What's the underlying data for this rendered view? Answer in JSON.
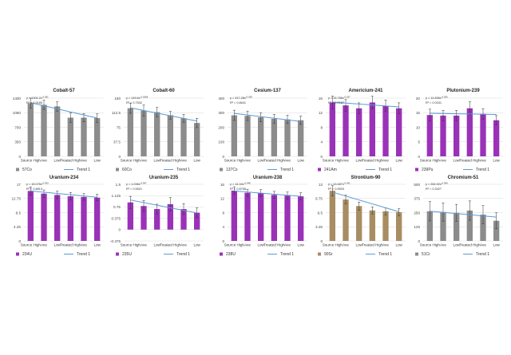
{
  "categories": [
    "Source High",
    "Ave",
    "Low",
    "Treated High",
    "Ave",
    "Low"
  ],
  "trend_label": "Trend 1",
  "colors": {
    "gray": "#8c8c8c",
    "purple": "#9a32b8",
    "tan": "#a88d63",
    "trend": "#5b9bd5",
    "error": "#333333"
  },
  "chart_data": [
    {
      "type": "bar",
      "title": "Cobalt-57",
      "series_name": "57Co",
      "color_key": "gray",
      "yticks": [
        "0",
        "350",
        "700",
        "1050",
        "1400"
      ],
      "ylim": [
        0,
        1400
      ],
      "eq_main": "y = 1304.2x",
      "eq_exp": "-0.061",
      "r2_text": "R² = 0.9185",
      "values": [
        1280,
        1240,
        1200,
        930,
        930,
        920
      ],
      "errors": [
        120,
        110,
        110,
        110,
        100,
        100
      ],
      "trend": [
        1290,
        920
      ]
    },
    {
      "type": "bar",
      "title": "Cobalt-60",
      "series_name": "60Co",
      "color_key": "gray",
      "yticks": [
        "0",
        "37.5",
        "75",
        "112.5",
        "150"
      ],
      "ylim": [
        0,
        150
      ],
      "eq_main": "y = 149.6x",
      "eq_exp": "-0.0268",
      "r2_text": "R² = 0.7532",
      "values": [
        124,
        118,
        114,
        106,
        98,
        86
      ],
      "errors": [
        13,
        14,
        12,
        10,
        10,
        12
      ],
      "trend": [
        125,
        91
      ]
    },
    {
      "type": "bar",
      "title": "Cesium-137",
      "series_name": "137Cs",
      "color_key": "gray",
      "yticks": [
        "0",
        "100",
        "200",
        "300",
        "400"
      ],
      "ylim": [
        0,
        400
      ],
      "eq_main": "y = 317.28x",
      "eq_exp": "-0.038",
      "r2_text": "R² = 0.8641",
      "values": [
        282,
        278,
        268,
        258,
        254,
        248
      ],
      "errors": [
        35,
        32,
        30,
        30,
        28,
        28
      ],
      "trend": [
        295,
        240
      ]
    },
    {
      "type": "bar",
      "title": "Americium-241",
      "series_name": "241Am",
      "color_key": "purple",
      "yticks": [
        "0",
        "4",
        "8",
        "12",
        "16"
      ],
      "ylim": [
        0,
        16
      ],
      "eq_main": "y = 15.786x",
      "eq_exp": "-0.037",
      "r2_text": "R² = 0.2187",
      "values": [
        14.8,
        14.0,
        13.2,
        14.8,
        13.9,
        13.2
      ],
      "errors": [
        1.8,
        1.6,
        1.5,
        1.7,
        1.6,
        1.5
      ],
      "trend": [
        14.9,
        13.6
      ]
    },
    {
      "type": "bar",
      "title": "Plutonium-239",
      "series_name": "239Pu",
      "color_key": "purple",
      "yticks": [
        "0",
        "5",
        "10",
        "15",
        "20"
      ],
      "ylim": [
        0,
        20
      ],
      "eq_main": "y = 14.836x",
      "eq_exp": "-0.005",
      "r2_text": "R² = 0.0031",
      "values": [
        14.2,
        14.0,
        14.0,
        16.5,
        14.6,
        12.4
      ],
      "errors": [
        2.0,
        1.8,
        1.8,
        2.2,
        1.8,
        1.6
      ],
      "trend": [
        14.8,
        14.4
      ]
    },
    {
      "type": "bar",
      "title": "Uranium-234",
      "series_name": "234U",
      "color_key": "purple",
      "yticks": [
        "0",
        "4.25",
        "8.5",
        "12.75",
        "17"
      ],
      "ylim": [
        0,
        17
      ],
      "eq_main": "y = 15.075x",
      "eq_exp": "-0.053",
      "r2_text": "R² = 0.8813",
      "values": [
        15.0,
        14.2,
        13.8,
        13.4,
        13.2,
        13.0
      ],
      "errors": [
        1.2,
        1.1,
        1.1,
        1.1,
        1.0,
        1.0
      ],
      "trend": [
        15.0,
        13.1
      ]
    },
    {
      "type": "bar",
      "title": "Uranium-235",
      "series_name": "235U",
      "color_key": "purple",
      "yticks": [
        "-0.375",
        "0",
        "0.375",
        "0.75",
        "1.125",
        "1.5"
      ],
      "ylim": [
        -0.375,
        1.5
      ],
      "eq_main": "y = 1.036x",
      "eq_exp": "-0.097",
      "r2_text": "R² = 0.5521",
      "values": [
        0.9,
        0.78,
        0.68,
        0.84,
        0.68,
        0.56
      ],
      "errors": [
        0.2,
        0.18,
        0.16,
        0.22,
        0.18,
        0.16
      ],
      "trend": [
        0.98,
        0.55
      ]
    },
    {
      "type": "bar",
      "title": "Uranium-238",
      "series_name": "238U",
      "color_key": "purple",
      "yticks": [
        "0",
        "4",
        "8",
        "12",
        "16"
      ],
      "ylim": [
        0,
        16
      ],
      "eq_main": "y = 14.34x",
      "eq_exp": "-0.048",
      "r2_text": "R² = 0.8758",
      "values": [
        14.2,
        13.6,
        13.5,
        13.0,
        12.8,
        12.6
      ],
      "errors": [
        1.1,
        1.0,
        1.0,
        1.0,
        1.0,
        1.0
      ],
      "trend": [
        14.1,
        12.6
      ]
    },
    {
      "type": "bar",
      "title": "Strontium-90",
      "series_name": "90Sr",
      "color_key": "tan",
      "yticks": [
        "0",
        "3.25",
        "6.5",
        "9.75",
        "13"
      ],
      "ylim": [
        0,
        13
      ],
      "eq_main": "y = 13.487x",
      "eq_exp": "-0.041",
      "r2_text": "R² = 0.9503",
      "values": [
        11.5,
        9.5,
        8.0,
        7.0,
        6.8,
        6.6
      ],
      "errors": [
        1.2,
        1.0,
        0.9,
        0.8,
        0.8,
        0.8
      ],
      "trend": [
        11.2,
        6.7
      ]
    },
    {
      "type": "bar",
      "title": "Chromium-51",
      "series_name": "51Cr",
      "color_key": "gray",
      "yticks": [
        "0",
        "125",
        "250",
        "375",
        "500"
      ],
      "ylim": [
        0,
        500
      ],
      "eq_main": "y = 264.92x",
      "eq_exp": "-0.069",
      "r2_text": "R² = 0.3427",
      "values": [
        262,
        255,
        248,
        268,
        232,
        178
      ],
      "errors": [
        85,
        80,
        75,
        85,
        80,
        70
      ],
      "trend": [
        262,
        210
      ]
    }
  ]
}
